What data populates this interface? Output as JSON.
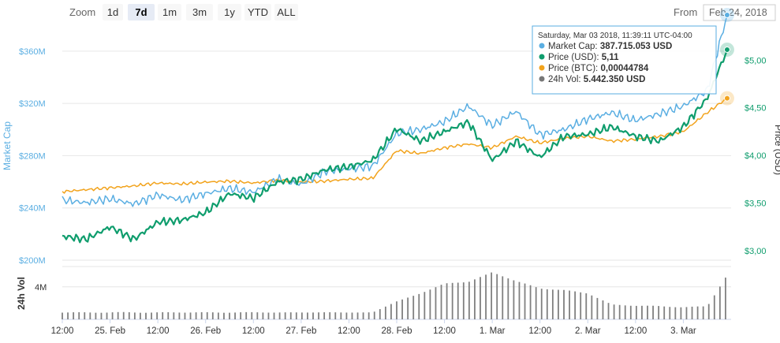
{
  "toolbar": {
    "zoom_label": "Zoom",
    "zoom_buttons": [
      "1d",
      "7d",
      "1m",
      "3m",
      "1y",
      "YTD",
      "ALL"
    ],
    "selected_zoom": "7d",
    "from_label": "From",
    "from_value": "Feb 24, 2018"
  },
  "tooltip": {
    "header": "Saturday, Mar 03 2018, 11:39:11 UTC-04:00",
    "rows": [
      {
        "label": "Market Cap",
        "value": "387.715.053 USD",
        "color": "#5aaee2"
      },
      {
        "label": "Price (USD)",
        "value": "5,11",
        "color": "#0f9d6d"
      },
      {
        "label": "Price (BTC)",
        "value": "0,00044784",
        "color": "#f2a31c"
      },
      {
        "label": "24h Vol",
        "value": "5.442.350 USD",
        "color": "#777777"
      }
    ]
  },
  "colors": {
    "market_cap": "#5aaee2",
    "price_usd": "#0f9d6d",
    "price_btc": "#f2a31c",
    "volume": "#808080"
  },
  "chart_data": {
    "type": "line",
    "x_tick_labels": [
      "12:00",
      "25. Feb",
      "12:00",
      "26. Feb",
      "12:00",
      "27. Feb",
      "12:00",
      "28. Feb",
      "12:00",
      "1. Mar",
      "12:00",
      "2. Mar",
      "12:00",
      "3. Mar"
    ],
    "x": [
      0,
      6,
      12,
      18,
      24,
      30,
      36,
      42,
      48,
      54,
      60,
      66,
      72,
      78,
      84,
      90,
      96,
      102,
      108,
      114,
      120,
      126,
      132,
      138,
      144,
      150,
      156,
      162
    ],
    "left_axis": {
      "label": "Market Cap",
      "tick_labels": [
        "$200M",
        "$240M",
        "$280M",
        "$320M",
        "$360M"
      ],
      "range": [
        200,
        375
      ]
    },
    "right_axis": {
      "label": "Price (USD)",
      "tick_labels": [
        "$3,00",
        "$3,50",
        "$4,00",
        "$4,50",
        "$5,00"
      ],
      "range": [
        2.9,
        5.3
      ]
    },
    "volume_axis": {
      "label": "24h Vol",
      "tick_labels": [
        "4M"
      ],
      "range": [
        0,
        6.5
      ]
    },
    "series": [
      {
        "name": "Market Cap",
        "axis": "left",
        "values": [
          246,
          244,
          247,
          243,
          250,
          246,
          251,
          255,
          252,
          262,
          258,
          268,
          270,
          272,
          297,
          300,
          306,
          318,
          303,
          314,
          296,
          300,
          308,
          313,
          307,
          312,
          318,
          330
        ]
      },
      {
        "name": "Price (USD)",
        "axis": "right",
        "values": [
          3.15,
          3.12,
          3.25,
          3.12,
          3.3,
          3.32,
          3.4,
          3.6,
          3.55,
          3.72,
          3.75,
          3.85,
          3.88,
          3.95,
          4.28,
          4.15,
          4.25,
          4.35,
          3.95,
          4.15,
          3.98,
          4.2,
          4.22,
          4.3,
          4.2,
          4.15,
          4.3,
          4.6
        ]
      },
      {
        "name": "Price (BTC)",
        "axis": "right",
        "values": [
          3.62,
          3.64,
          3.66,
          3.68,
          3.71,
          3.7,
          3.72,
          3.73,
          3.71,
          3.74,
          3.72,
          3.73,
          3.75,
          3.76,
          4.05,
          4.02,
          4.08,
          4.12,
          4.08,
          4.2,
          4.13,
          4.18,
          4.2,
          4.15,
          4.17,
          4.2,
          4.25,
          4.45
        ]
      },
      {
        "name": "24h Vol",
        "axis": "volume",
        "values": [
          0.85,
          0.85,
          0.85,
          0.85,
          0.85,
          0.85,
          0.85,
          0.85,
          0.85,
          0.85,
          0.85,
          0.85,
          0.85,
          0.85,
          2.2,
          3.2,
          4.4,
          4.6,
          5.8,
          4.7,
          3.8,
          3.6,
          3.2,
          1.8,
          1.7,
          1.6,
          1.5,
          1.6
        ]
      }
    ],
    "tooltip_point": {
      "x": 167,
      "market_cap": 387.7,
      "price_usd": 5.11,
      "price_btc": 4.6,
      "volume": 5.44
    }
  }
}
